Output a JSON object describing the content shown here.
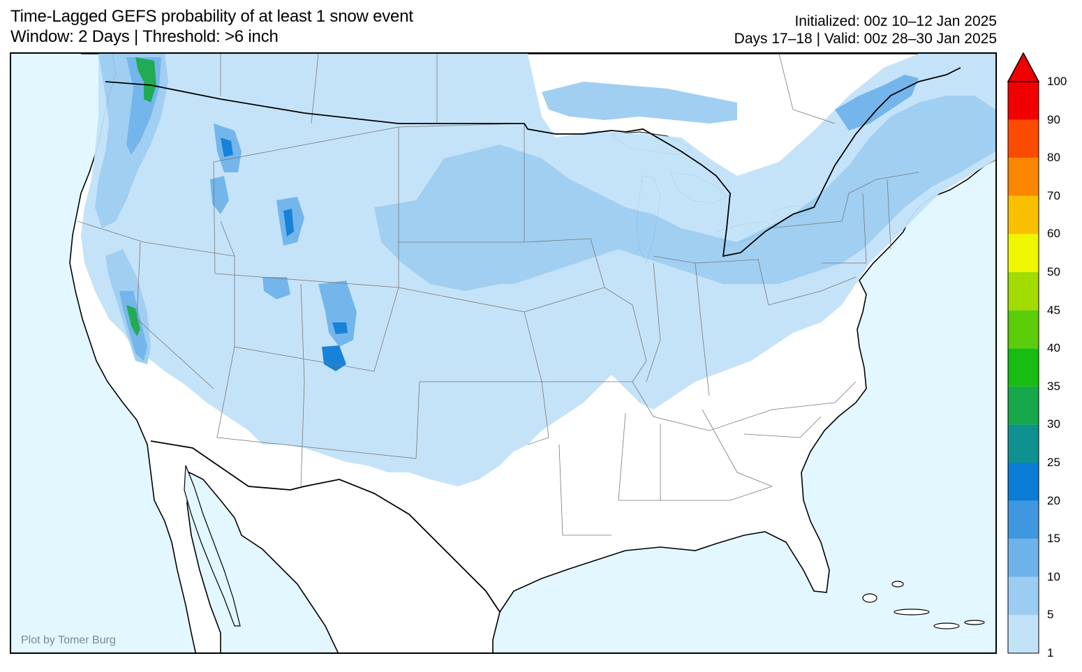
{
  "header": {
    "title_line1": "Time-Lagged GEFS probability of at least 1 snow event",
    "title_line2": "Window: 2 Days | Threshold: >6 inch",
    "init_line1": "Initialized: 00z 10–12 Jan 2025",
    "init_line2": "Days 17–18 | Valid: 00z 28–30 Jan 2025"
  },
  "map": {
    "credit": "Plot by Tomer Burg",
    "ocean_color": "#e2f7ff",
    "land_color": "#ffffff",
    "region": "CONUS"
  },
  "colorbar": {
    "labels": [
      "1",
      "5",
      "10",
      "15",
      "20",
      "25",
      "30",
      "35",
      "40",
      "45",
      "50",
      "60",
      "70",
      "80",
      "90",
      "100"
    ],
    "colors": [
      "#c2e2f8",
      "#9bcdf2",
      "#6db3ea",
      "#3f97df",
      "#0b7dd6",
      "#0f918f",
      "#16a84a",
      "#17bd10",
      "#5bcd0a",
      "#a2db02",
      "#eef600",
      "#f9c000",
      "#fb8600",
      "#fb4b00",
      "#f00000"
    ],
    "extend": "max"
  }
}
